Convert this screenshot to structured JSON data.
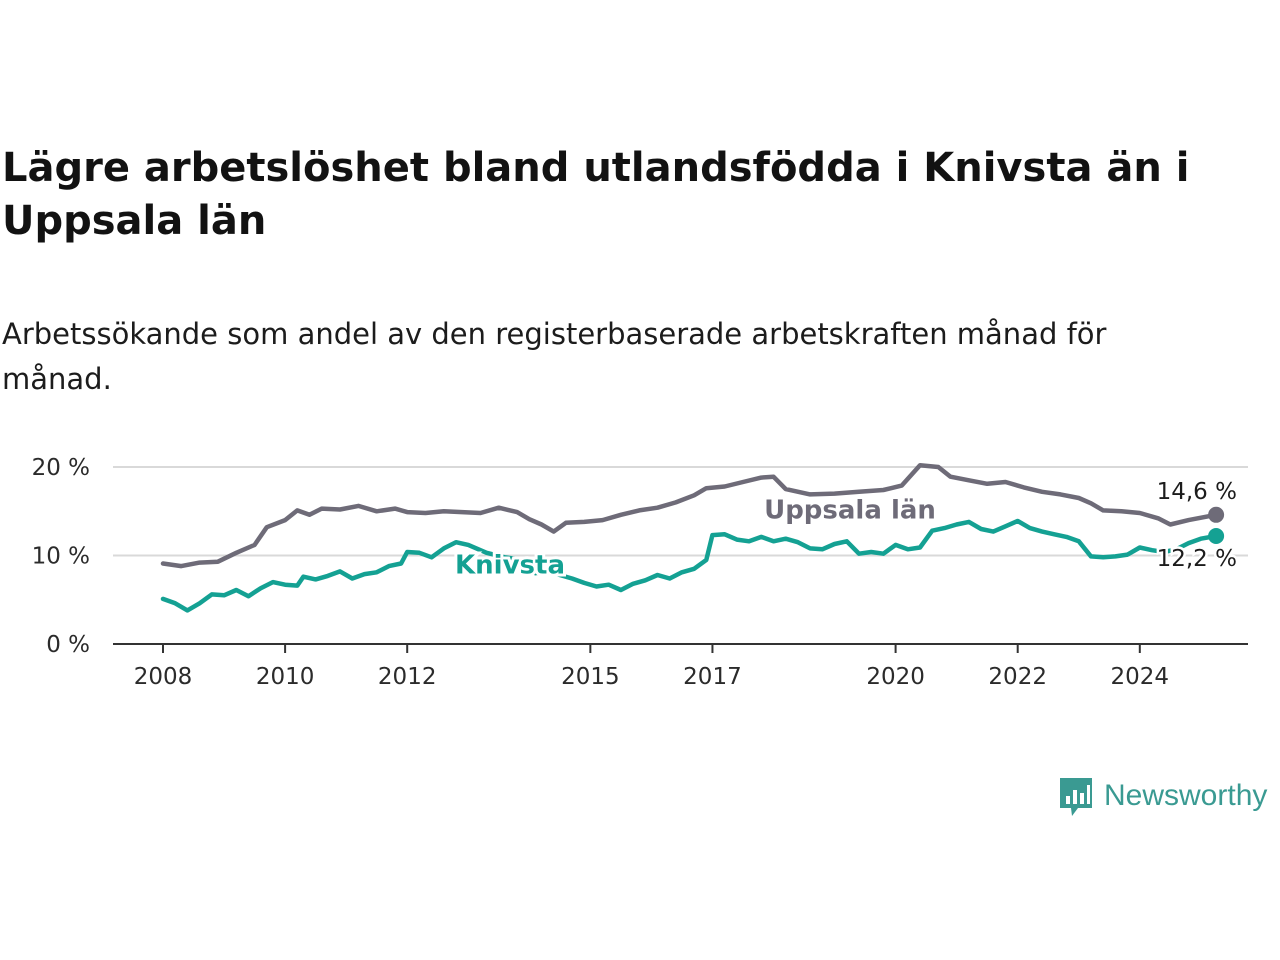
{
  "title": "Lägre arbetslöshet bland utlandsfödda i Knivsta än i Uppsala län",
  "subtitle": "Arbetssökande som andel av den registerbaserade arbetskraften månad för månad.",
  "logo_text": "Newsworthy",
  "chart_data": {
    "type": "line",
    "title": "Lägre arbetslöshet bland utlandsfödda i Knivsta än i Uppsala län",
    "subtitle": "Arbetssökande som andel av den registerbaserade arbetskraften månad för månad.",
    "xlabel": "",
    "ylabel": "",
    "ylim": [
      0,
      20
    ],
    "xlim": [
      2007.2,
      2025.8
    ],
    "y_ticks": [
      0,
      10,
      20
    ],
    "y_tick_labels": [
      "0 %",
      "10 %",
      "20 %"
    ],
    "x_ticks": [
      2008,
      2010,
      2012,
      2015,
      2017,
      2020,
      2022,
      2024
    ],
    "x_tick_labels": [
      "2008",
      "2010",
      "2012",
      "2015",
      "2017",
      "2020",
      "2022",
      "2024"
    ],
    "grid": "horizontal",
    "legend": "none",
    "series": [
      {
        "name": "Uppsala län",
        "color": "#6e6b78",
        "end_label": "14,6 %",
        "points": [
          [
            2008.0,
            9.1
          ],
          [
            2008.3,
            8.8
          ],
          [
            2008.6,
            9.2
          ],
          [
            2008.9,
            9.3
          ],
          [
            2009.2,
            10.3
          ],
          [
            2009.5,
            11.2
          ],
          [
            2009.7,
            13.2
          ],
          [
            2010.0,
            14.0
          ],
          [
            2010.2,
            15.1
          ],
          [
            2010.4,
            14.6
          ],
          [
            2010.6,
            15.3
          ],
          [
            2010.9,
            15.2
          ],
          [
            2011.2,
            15.6
          ],
          [
            2011.5,
            15.0
          ],
          [
            2011.8,
            15.3
          ],
          [
            2012.0,
            14.9
          ],
          [
            2012.3,
            14.8
          ],
          [
            2012.6,
            15.0
          ],
          [
            2012.9,
            14.9
          ],
          [
            2013.2,
            14.8
          ],
          [
            2013.5,
            15.4
          ],
          [
            2013.8,
            14.9
          ],
          [
            2014.0,
            14.1
          ],
          [
            2014.2,
            13.5
          ],
          [
            2014.4,
            12.7
          ],
          [
            2014.6,
            13.7
          ],
          [
            2014.9,
            13.8
          ],
          [
            2015.2,
            14.0
          ],
          [
            2015.5,
            14.6
          ],
          [
            2015.8,
            15.1
          ],
          [
            2016.1,
            15.4
          ],
          [
            2016.4,
            16.0
          ],
          [
            2016.7,
            16.8
          ],
          [
            2016.9,
            17.6
          ],
          [
            2017.2,
            17.8
          ],
          [
            2017.5,
            18.3
          ],
          [
            2017.8,
            18.8
          ],
          [
            2018.0,
            18.9
          ],
          [
            2018.2,
            17.5
          ],
          [
            2018.6,
            16.9
          ],
          [
            2019.0,
            17.0
          ],
          [
            2019.4,
            17.2
          ],
          [
            2019.8,
            17.4
          ],
          [
            2020.1,
            17.9
          ],
          [
            2020.4,
            20.2
          ],
          [
            2020.7,
            20.0
          ],
          [
            2020.9,
            18.9
          ],
          [
            2021.2,
            18.5
          ],
          [
            2021.5,
            18.1
          ],
          [
            2021.8,
            18.3
          ],
          [
            2022.1,
            17.7
          ],
          [
            2022.4,
            17.2
          ],
          [
            2022.7,
            16.9
          ],
          [
            2023.0,
            16.5
          ],
          [
            2023.2,
            15.9
          ],
          [
            2023.4,
            15.1
          ],
          [
            2023.7,
            15.0
          ],
          [
            2024.0,
            14.8
          ],
          [
            2024.3,
            14.2
          ],
          [
            2024.5,
            13.5
          ],
          [
            2024.8,
            14.0
          ],
          [
            2025.1,
            14.4
          ],
          [
            2025.25,
            14.6
          ]
        ]
      },
      {
        "name": "Knivsta",
        "color": "#14a193",
        "end_label": "12,2 %",
        "points": [
          [
            2008.0,
            5.1
          ],
          [
            2008.2,
            4.6
          ],
          [
            2008.4,
            3.8
          ],
          [
            2008.6,
            4.6
          ],
          [
            2008.8,
            5.6
          ],
          [
            2009.0,
            5.5
          ],
          [
            2009.2,
            6.1
          ],
          [
            2009.4,
            5.4
          ],
          [
            2009.6,
            6.3
          ],
          [
            2009.8,
            7.0
          ],
          [
            2010.0,
            6.7
          ],
          [
            2010.2,
            6.6
          ],
          [
            2010.3,
            7.6
          ],
          [
            2010.5,
            7.3
          ],
          [
            2010.7,
            7.7
          ],
          [
            2010.9,
            8.2
          ],
          [
            2011.1,
            7.4
          ],
          [
            2011.3,
            7.9
          ],
          [
            2011.5,
            8.1
          ],
          [
            2011.7,
            8.8
          ],
          [
            2011.9,
            9.1
          ],
          [
            2012.0,
            10.4
          ],
          [
            2012.2,
            10.3
          ],
          [
            2012.4,
            9.8
          ],
          [
            2012.6,
            10.8
          ],
          [
            2012.8,
            11.5
          ],
          [
            2013.0,
            11.2
          ],
          [
            2013.3,
            10.3
          ],
          [
            2013.6,
            9.8
          ],
          [
            2013.9,
            9.5
          ],
          [
            2014.1,
            8.0
          ],
          [
            2014.3,
            8.2
          ],
          [
            2014.5,
            7.8
          ],
          [
            2014.7,
            7.4
          ],
          [
            2014.9,
            6.9
          ],
          [
            2015.1,
            6.5
          ],
          [
            2015.3,
            6.7
          ],
          [
            2015.5,
            6.1
          ],
          [
            2015.7,
            6.8
          ],
          [
            2015.9,
            7.2
          ],
          [
            2016.1,
            7.8
          ],
          [
            2016.3,
            7.4
          ],
          [
            2016.5,
            8.1
          ],
          [
            2016.7,
            8.5
          ],
          [
            2016.9,
            9.5
          ],
          [
            2017.0,
            12.3
          ],
          [
            2017.2,
            12.4
          ],
          [
            2017.4,
            11.8
          ],
          [
            2017.6,
            11.6
          ],
          [
            2017.8,
            12.1
          ],
          [
            2018.0,
            11.6
          ],
          [
            2018.2,
            11.9
          ],
          [
            2018.4,
            11.5
          ],
          [
            2018.6,
            10.8
          ],
          [
            2018.8,
            10.7
          ],
          [
            2019.0,
            11.3
          ],
          [
            2019.2,
            11.6
          ],
          [
            2019.4,
            10.2
          ],
          [
            2019.6,
            10.4
          ],
          [
            2019.8,
            10.2
          ],
          [
            2020.0,
            11.2
          ],
          [
            2020.2,
            10.7
          ],
          [
            2020.4,
            10.9
          ],
          [
            2020.6,
            12.8
          ],
          [
            2020.8,
            13.1
          ],
          [
            2021.0,
            13.5
          ],
          [
            2021.2,
            13.8
          ],
          [
            2021.4,
            13.0
          ],
          [
            2021.6,
            12.7
          ],
          [
            2021.8,
            13.3
          ],
          [
            2022.0,
            13.9
          ],
          [
            2022.2,
            13.1
          ],
          [
            2022.4,
            12.7
          ],
          [
            2022.6,
            12.4
          ],
          [
            2022.8,
            12.1
          ],
          [
            2023.0,
            11.6
          ],
          [
            2023.2,
            9.9
          ],
          [
            2023.4,
            9.8
          ],
          [
            2023.6,
            9.9
          ],
          [
            2023.8,
            10.1
          ],
          [
            2024.0,
            10.9
          ],
          [
            2024.2,
            10.6
          ],
          [
            2024.4,
            10.4
          ],
          [
            2024.6,
            10.7
          ],
          [
            2024.8,
            11.4
          ],
          [
            2025.0,
            11.9
          ],
          [
            2025.25,
            12.2
          ]
        ]
      }
    ]
  }
}
